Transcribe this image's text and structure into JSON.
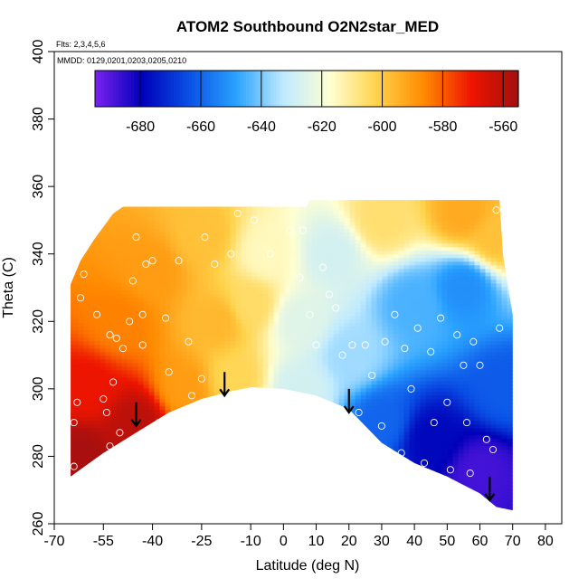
{
  "chart_data": {
    "type": "heatmap",
    "title": "ATOM2 Southbound O2N2star_MED",
    "annotations": {
      "flights": "Flts: 2,3,4,5,6",
      "dates": "MMDD: 0129,0201,0203,0205,0210"
    },
    "xlabel": "Latitude (deg N)",
    "ylabel": "Theta (C)",
    "xlim": [
      -70,
      85
    ],
    "ylim": [
      260,
      400
    ],
    "xticks": [
      -70,
      -55,
      -40,
      -25,
      -10,
      0,
      10,
      20,
      30,
      40,
      50,
      60,
      70,
      80
    ],
    "xtick_labels": [
      "-70",
      "-55",
      "-40",
      "-25",
      "-10",
      "0",
      "10",
      "20",
      "30",
      "40",
      "50",
      "60",
      "70",
      "80"
    ],
    "yticks": [
      260,
      280,
      300,
      320,
      340,
      360,
      380,
      400
    ],
    "ytick_labels": [
      "260",
      "280",
      "300",
      "320",
      "340",
      "360",
      "380",
      "400"
    ],
    "colorbar": {
      "range": [
        -695,
        -555
      ],
      "ticks": [
        -680,
        -660,
        -640,
        -620,
        -600,
        -580,
        -560
      ],
      "tick_labels": [
        "-680",
        "-660",
        "-640",
        "-620",
        "-600",
        "-580",
        "-560"
      ],
      "colors": [
        "#7a22f0",
        "#0000b8",
        "#0a50e6",
        "#2aa2ff",
        "#bfeaff",
        "#ffffd2",
        "#ffd24a",
        "#ff8a00",
        "#ee1500",
        "#a30f0f"
      ]
    },
    "domain_top": [
      {
        "lat": -65,
        "theta": 331
      },
      {
        "lat": -62,
        "theta": 338
      },
      {
        "lat": -58,
        "theta": 344
      },
      {
        "lat": -52,
        "theta": 352
      },
      {
        "lat": -49,
        "theta": 354
      },
      {
        "lat": 7,
        "theta": 354
      },
      {
        "lat": 8,
        "theta": 356
      },
      {
        "lat": 66,
        "theta": 356
      },
      {
        "lat": 67,
        "theta": 340
      },
      {
        "lat": 70,
        "theta": 322
      }
    ],
    "domain_bottom": [
      {
        "lat": -65,
        "theta": 274
      },
      {
        "lat": -55,
        "theta": 281
      },
      {
        "lat": -45,
        "theta": 287
      },
      {
        "lat": -35,
        "theta": 293
      },
      {
        "lat": -25,
        "theta": 297
      },
      {
        "lat": -15,
        "theta": 299.5
      },
      {
        "lat": -10,
        "theta": 300.5
      },
      {
        "lat": 0,
        "theta": 300
      },
      {
        "lat": 10,
        "theta": 298
      },
      {
        "lat": 20,
        "theta": 294
      },
      {
        "lat": 25,
        "theta": 289
      },
      {
        "lat": 30,
        "theta": 284
      },
      {
        "lat": 40,
        "theta": 278
      },
      {
        "lat": 50,
        "theta": 274
      },
      {
        "lat": 60,
        "theta": 269
      },
      {
        "lat": 65,
        "theta": 265
      },
      {
        "lat": 70,
        "theta": 264
      }
    ],
    "field_anchors": [
      {
        "lat": -62,
        "theta": 280,
        "value": -556
      },
      {
        "lat": -45,
        "theta": 290,
        "value": -560
      },
      {
        "lat": -60,
        "theta": 300,
        "value": -570
      },
      {
        "lat": -50,
        "theta": 320,
        "value": -585
      },
      {
        "lat": -40,
        "theta": 335,
        "value": -590
      },
      {
        "lat": -25,
        "theta": 345,
        "value": -598
      },
      {
        "lat": -20,
        "theta": 320,
        "value": -596
      },
      {
        "lat": -15,
        "theta": 303,
        "value": -603
      },
      {
        "lat": -5,
        "theta": 340,
        "value": -615
      },
      {
        "lat": 5,
        "theta": 320,
        "value": -625
      },
      {
        "lat": 5,
        "theta": 300,
        "value": -628
      },
      {
        "lat": 15,
        "theta": 340,
        "value": -628
      },
      {
        "lat": 20,
        "theta": 310,
        "value": -636
      },
      {
        "lat": 30,
        "theta": 350,
        "value": -606
      },
      {
        "lat": 55,
        "theta": 352,
        "value": -593
      },
      {
        "lat": 65,
        "theta": 345,
        "value": -598
      },
      {
        "lat": 40,
        "theta": 325,
        "value": -645
      },
      {
        "lat": 55,
        "theta": 330,
        "value": -652
      },
      {
        "lat": 30,
        "theta": 290,
        "value": -660
      },
      {
        "lat": 45,
        "theta": 285,
        "value": -678
      },
      {
        "lat": 60,
        "theta": 275,
        "value": -688
      },
      {
        "lat": 68,
        "theta": 300,
        "value": -662
      },
      {
        "lat": -30,
        "theta": 300,
        "value": -590
      },
      {
        "lat": -10,
        "theta": 325,
        "value": -605
      }
    ],
    "observations": [
      {
        "lat": -64,
        "theta": 290
      },
      {
        "lat": -63,
        "theta": 296
      },
      {
        "lat": -64,
        "theta": 277
      },
      {
        "lat": -62,
        "theta": 327
      },
      {
        "lat": -61,
        "theta": 334
      },
      {
        "lat": -57,
        "theta": 322
      },
      {
        "lat": -55,
        "theta": 297
      },
      {
        "lat": -54,
        "theta": 293
      },
      {
        "lat": -53,
        "theta": 283
      },
      {
        "lat": -53,
        "theta": 316
      },
      {
        "lat": -52,
        "theta": 302
      },
      {
        "lat": -51,
        "theta": 315
      },
      {
        "lat": -50,
        "theta": 287
      },
      {
        "lat": -49,
        "theta": 312
      },
      {
        "lat": -47,
        "theta": 320
      },
      {
        "lat": -46,
        "theta": 332
      },
      {
        "lat": -45,
        "theta": 345
      },
      {
        "lat": -43,
        "theta": 322
      },
      {
        "lat": -43,
        "theta": 313
      },
      {
        "lat": -42,
        "theta": 337
      },
      {
        "lat": -40,
        "theta": 338
      },
      {
        "lat": -38,
        "theta": 290
      },
      {
        "lat": -36,
        "theta": 321
      },
      {
        "lat": -35,
        "theta": 305
      },
      {
        "lat": -32,
        "theta": 338
      },
      {
        "lat": -29,
        "theta": 314
      },
      {
        "lat": -28,
        "theta": 298
      },
      {
        "lat": -25,
        "theta": 303
      },
      {
        "lat": -24,
        "theta": 345
      },
      {
        "lat": -21,
        "theta": 337
      },
      {
        "lat": -16,
        "theta": 340
      },
      {
        "lat": -14,
        "theta": 352
      },
      {
        "lat": -9,
        "theta": 350
      },
      {
        "lat": -4,
        "theta": 340
      },
      {
        "lat": 2,
        "theta": 347
      },
      {
        "lat": 5,
        "theta": 333
      },
      {
        "lat": 6,
        "theta": 347
      },
      {
        "lat": 8,
        "theta": 322
      },
      {
        "lat": 10,
        "theta": 313
      },
      {
        "lat": 12,
        "theta": 336
      },
      {
        "lat": 14,
        "theta": 328
      },
      {
        "lat": 16,
        "theta": 324
      },
      {
        "lat": 18,
        "theta": 310
      },
      {
        "lat": 21,
        "theta": 313
      },
      {
        "lat": 23,
        "theta": 293
      },
      {
        "lat": 25,
        "theta": 313
      },
      {
        "lat": 27,
        "theta": 304
      },
      {
        "lat": 30,
        "theta": 289
      },
      {
        "lat": 31,
        "theta": 314
      },
      {
        "lat": 34,
        "theta": 322
      },
      {
        "lat": 36,
        "theta": 281
      },
      {
        "lat": 37,
        "theta": 312
      },
      {
        "lat": 39,
        "theta": 300
      },
      {
        "lat": 41,
        "theta": 318
      },
      {
        "lat": 43,
        "theta": 278
      },
      {
        "lat": 45,
        "theta": 311
      },
      {
        "lat": 46,
        "theta": 290
      },
      {
        "lat": 48,
        "theta": 321
      },
      {
        "lat": 50,
        "theta": 296
      },
      {
        "lat": 51,
        "theta": 276
      },
      {
        "lat": 53,
        "theta": 316
      },
      {
        "lat": 55,
        "theta": 307
      },
      {
        "lat": 56,
        "theta": 290
      },
      {
        "lat": 57,
        "theta": 275
      },
      {
        "lat": 58,
        "theta": 314
      },
      {
        "lat": 60,
        "theta": 307
      },
      {
        "lat": 62,
        "theta": 285
      },
      {
        "lat": 64,
        "theta": 282
      },
      {
        "lat": 65,
        "theta": 353
      },
      {
        "lat": 66,
        "theta": 318
      }
    ],
    "arrows": [
      {
        "lat": -45,
        "theta_tip": 289,
        "theta_tail": 296
      },
      {
        "lat": -18,
        "theta_tip": 298,
        "theta_tail": 305
      },
      {
        "lat": 20,
        "theta_tip": 293,
        "theta_tail": 300
      },
      {
        "lat": 63,
        "theta_tip": 267,
        "theta_tail": 274
      }
    ]
  }
}
